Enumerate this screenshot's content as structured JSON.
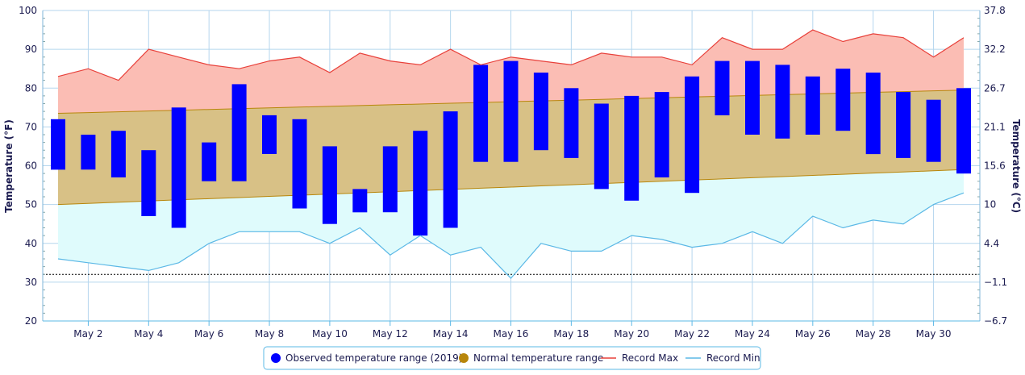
{
  "chart_data": {
    "type": "bar",
    "x": [
      "May 1",
      "May 2",
      "May 3",
      "May 4",
      "May 5",
      "May 6",
      "May 7",
      "May 8",
      "May 9",
      "May 10",
      "May 11",
      "May 12",
      "May 13",
      "May 14",
      "May 15",
      "May 16",
      "May 17",
      "May 18",
      "May 19",
      "May 20",
      "May 21",
      "May 22",
      "May 23",
      "May 24",
      "May 25",
      "May 26",
      "May 27",
      "May 28",
      "May 29",
      "May 30",
      "May 31"
    ],
    "x_tick_labels": [
      "May 2",
      "May 4",
      "May 6",
      "May 8",
      "May 10",
      "May 12",
      "May 14",
      "May 16",
      "May 18",
      "May 20",
      "May 22",
      "May 24",
      "May 26",
      "May 28",
      "May 30"
    ],
    "ylabel_left": "Temperature (°F)",
    "ylabel_right": "Temperature (°C)",
    "ylim": [
      20,
      100
    ],
    "y_ticks_left": [
      20,
      30,
      40,
      50,
      60,
      70,
      80,
      90,
      100
    ],
    "y_ticks_right": [
      "−6.7",
      "−1.1",
      "4.4",
      "10",
      "15.6",
      "21.1",
      "26.7",
      "32.2",
      "37.8"
    ],
    "grid": true,
    "freezing_line": 32,
    "legend_position": "bottom-center",
    "series": [
      {
        "name": "Observed temperature range (2019)",
        "color": "#0000ff",
        "low": [
          59,
          59,
          57,
          47,
          44,
          56,
          56,
          63,
          49,
          45,
          48,
          48,
          42,
          44,
          61,
          61,
          64,
          62,
          54,
          51,
          57,
          53,
          73,
          68,
          67,
          68,
          69,
          63,
          62,
          61,
          58
        ],
        "high": [
          72,
          68,
          69,
          64,
          75,
          66,
          81,
          73,
          72,
          65,
          54,
          65,
          69,
          74,
          86,
          87,
          84,
          80,
          76,
          78,
          79,
          83,
          87,
          87,
          86,
          83,
          85,
          84,
          79,
          77,
          80
        ]
      },
      {
        "name": "Normal temperature range",
        "color": "#b8860b",
        "low": [
          50.0,
          50.3,
          50.6,
          50.9,
          51.2,
          51.5,
          51.8,
          52.1,
          52.4,
          52.7,
          53.0,
          53.3,
          53.6,
          53.9,
          54.2,
          54.5,
          54.8,
          55.1,
          55.4,
          55.7,
          56.0,
          56.3,
          56.6,
          56.9,
          57.2,
          57.5,
          57.8,
          58.1,
          58.4,
          58.7,
          59.0
        ],
        "high": [
          73.5,
          73.7,
          73.9,
          74.1,
          74.3,
          74.5,
          74.7,
          74.9,
          75.1,
          75.3,
          75.5,
          75.7,
          75.9,
          76.1,
          76.3,
          76.5,
          76.7,
          76.9,
          77.1,
          77.3,
          77.5,
          77.7,
          77.9,
          78.1,
          78.3,
          78.5,
          78.7,
          78.9,
          79.1,
          79.3,
          79.5
        ]
      },
      {
        "name": "Record Max",
        "color": "#e8403a",
        "values": [
          83,
          85,
          82,
          90,
          88,
          86,
          85,
          87,
          88,
          84,
          89,
          87,
          86,
          90,
          86,
          88,
          87,
          86,
          89,
          88,
          88,
          86,
          93,
          90,
          90,
          95,
          92,
          94,
          93,
          88,
          93
        ]
      },
      {
        "name": "Record Min",
        "color": "#5bb8e6",
        "values": [
          36,
          35,
          34,
          33,
          35,
          40,
          43,
          43,
          43,
          40,
          44,
          37,
          42,
          37,
          39,
          31,
          40,
          38,
          38,
          42,
          41,
          39,
          40,
          43,
          40,
          47,
          44,
          46,
          45,
          50,
          53
        ]
      }
    ]
  }
}
